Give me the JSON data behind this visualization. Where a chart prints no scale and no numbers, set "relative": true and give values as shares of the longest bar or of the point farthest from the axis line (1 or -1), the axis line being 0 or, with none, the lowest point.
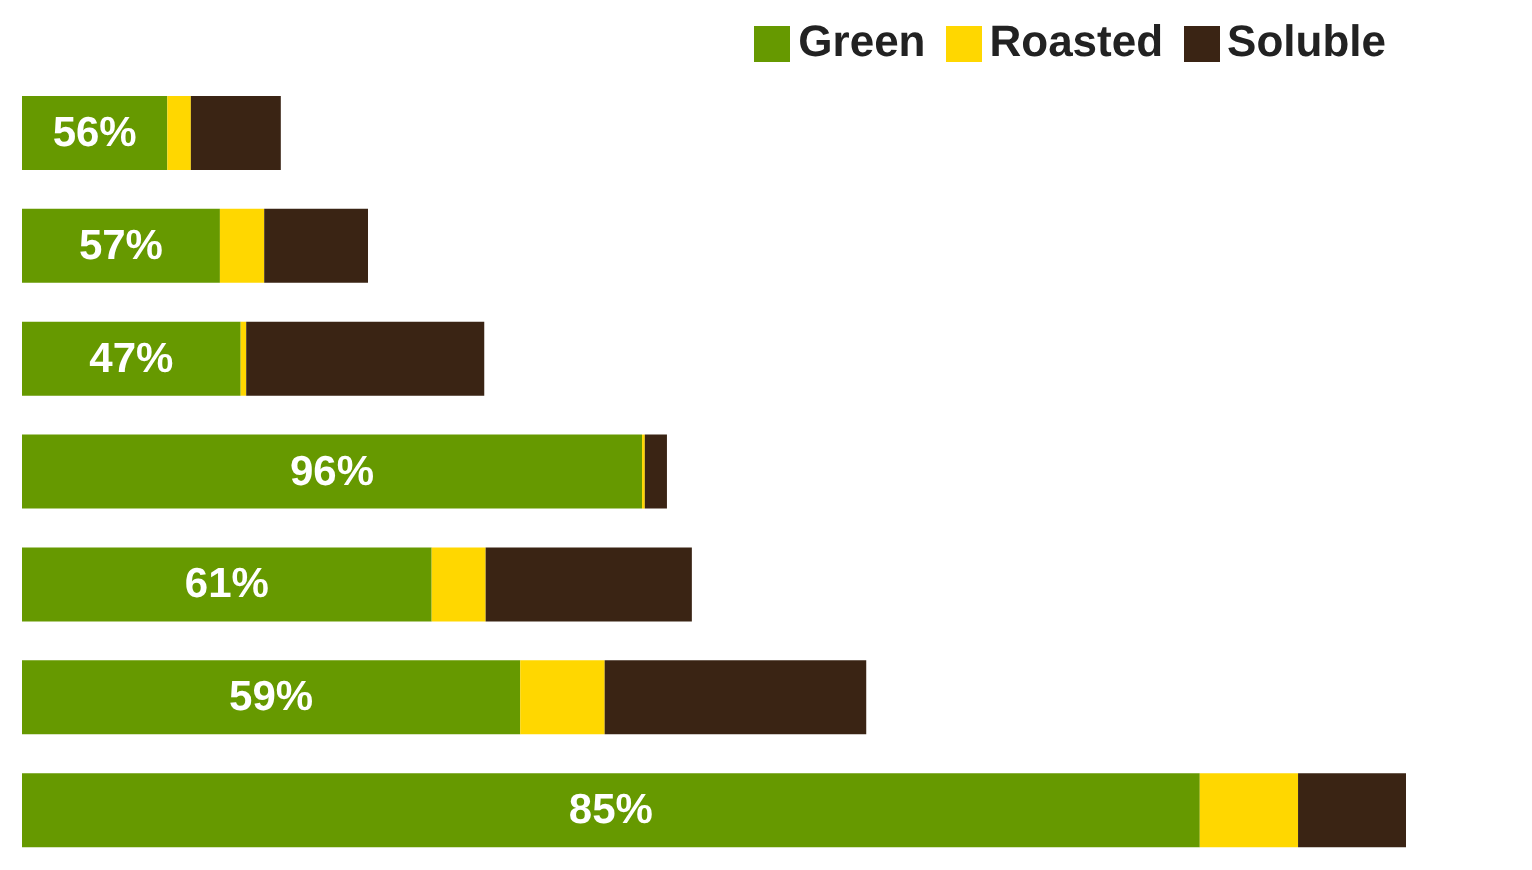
{
  "chart_data": {
    "type": "bar",
    "orientation": "horizontal",
    "stacked": true,
    "relative": true,
    "categories": [
      null,
      null,
      null,
      null,
      null,
      null,
      null
    ],
    "series": [
      {
        "name": "Green",
        "color": "#669900",
        "values": [
          0.105,
          0.143,
          0.158,
          0.448,
          0.296,
          0.36,
          0.851
        ]
      },
      {
        "name": "Roasted",
        "color": "#ffd700",
        "values": [
          0.017,
          0.032,
          0.004,
          0.002,
          0.039,
          0.061,
          0.071
        ]
      },
      {
        "name": "Soluble",
        "color": "#3a2414",
        "values": [
          0.065,
          0.075,
          0.172,
          0.016,
          0.149,
          0.189,
          0.078
        ]
      }
    ],
    "annotations": [
      "56%",
      "57%",
      "47%",
      "96%",
      "61%",
      "59%",
      "85%"
    ],
    "legend": "top right"
  }
}
